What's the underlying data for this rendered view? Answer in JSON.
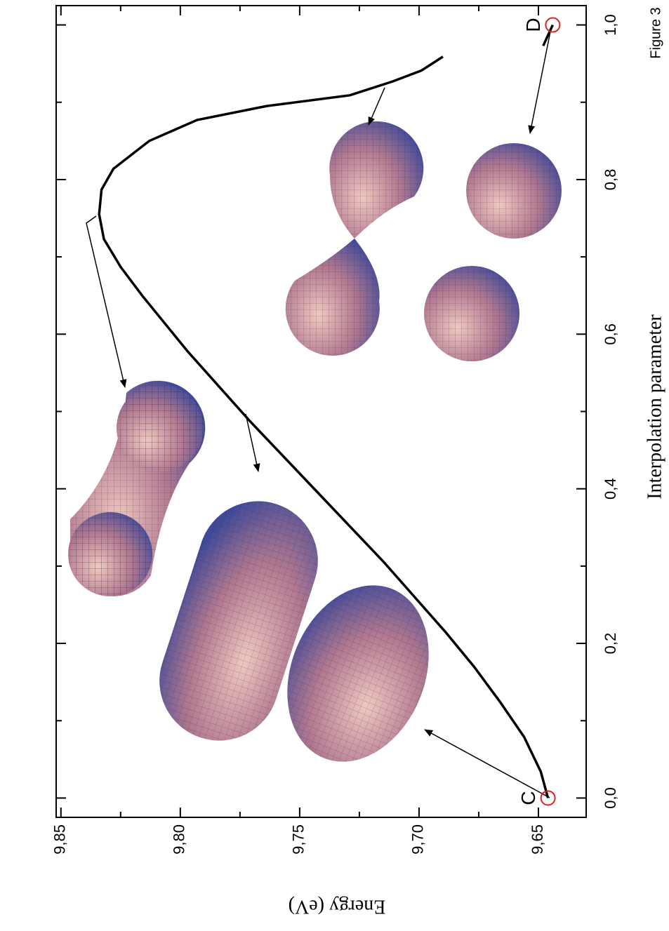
{
  "chart_data": {
    "type": "line",
    "figure_label": "Figure 3",
    "xlabel": "Interpolation parameter",
    "ylabel": "Energy (eV)",
    "x": [
      0,
      0.034,
      0.079,
      0.124,
      0.17,
      0.215,
      0.306,
      0.397,
      0.488,
      0.578,
      0.65,
      0.687,
      0.723,
      0.755,
      0.787,
      0.814,
      0.85,
      0.877,
      0.895,
      0.909,
      0.927,
      0.941,
      0.959,
      0.966,
      0.973,
      1.0
    ],
    "series": [
      {
        "color": "#000000",
        "values": [
          9.646,
          9.649,
          9.656,
          9.666,
          9.677,
          9.689,
          9.715,
          9.743,
          9.771,
          9.797,
          9.816,
          9.825,
          9.832,
          9.834,
          9.833,
          9.828,
          9.813,
          9.793,
          9.764,
          9.729,
          9.711,
          9.699,
          9.69,
          null,
          9.648,
          9.644
        ]
      }
    ],
    "points": [
      {
        "label": "C",
        "x": 0,
        "y": 9.646
      },
      {
        "label": "D",
        "x": 1.0,
        "y": 9.644
      }
    ],
    "point_color": "#e02020",
    "xlim": [
      -0.025,
      1.025
    ],
    "ylim": [
      9.63,
      9.852
    ],
    "xticks": [
      {
        "value": 0,
        "label": "0,0"
      },
      {
        "value": 0.2,
        "label": "0,2"
      },
      {
        "value": 0.4,
        "label": "0,4"
      },
      {
        "value": 0.6,
        "label": "0,6"
      },
      {
        "value": 0.8,
        "label": "0,8"
      },
      {
        "value": 1.0,
        "label": "1,0"
      }
    ],
    "xminor": [
      0.1,
      0.3,
      0.5,
      0.7,
      0.9
    ],
    "yticks": [
      {
        "value": 9.65,
        "label": "9,65"
      },
      {
        "value": 9.7,
        "label": "9,70"
      },
      {
        "value": 9.75,
        "label": "9,75"
      },
      {
        "value": 9.8,
        "label": "9,80"
      },
      {
        "value": 9.85,
        "label": "9,85"
      }
    ],
    "yminor": [
      9.675,
      9.725,
      9.775,
      9.825
    ]
  }
}
